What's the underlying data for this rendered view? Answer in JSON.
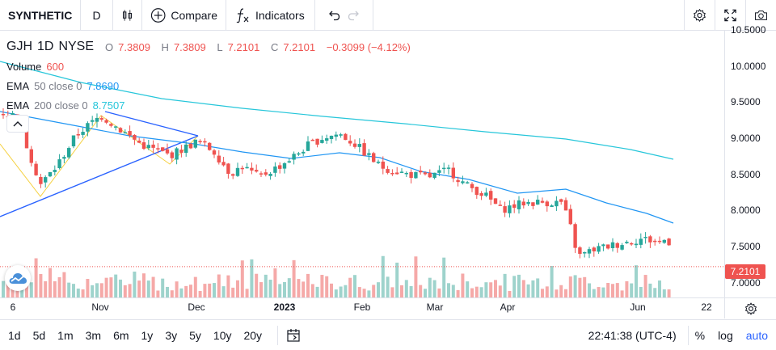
{
  "toolbar": {
    "symbol": "SYNTHETIC",
    "interval": "D",
    "compare_label": "Compare",
    "indicators_label": "Indicators"
  },
  "legend": {
    "ticker": "GJH",
    "interval": "1D",
    "exchange": "NYSE",
    "open_key": "O",
    "open": "7.3809",
    "high_key": "H",
    "high": "7.3809",
    "low_key": "L",
    "low": "7.2101",
    "close_key": "C",
    "close": "7.2101",
    "change": "−0.3099 (−4.12%)",
    "volume_name": "Volume",
    "volume_value": "600",
    "ema50_name": "EMA",
    "ema50_params": "50 close 0",
    "ema50_value": "7.8690",
    "ema200_name": "EMA",
    "ema200_params": "200 close 0",
    "ema200_value": "8.7507"
  },
  "price_axis": {
    "labels": [
      "10.5000",
      "10.0000",
      "9.5000",
      "9.0000",
      "8.5000",
      "8.0000",
      "7.5000",
      "7.0000"
    ],
    "last_price": "7.2101"
  },
  "time_axis": {
    "labels": [
      {
        "text": "6",
        "bold": false
      },
      {
        "text": "Nov",
        "bold": false
      },
      {
        "text": "Dec",
        "bold": false
      },
      {
        "text": "2023",
        "bold": true
      },
      {
        "text": "Feb",
        "bold": false
      },
      {
        "text": "Mar",
        "bold": false
      },
      {
        "text": "Apr",
        "bold": false
      },
      {
        "text": "Jun",
        "bold": false
      },
      {
        "text": "22",
        "bold": false
      }
    ]
  },
  "bottom": {
    "ranges": [
      "1d",
      "5d",
      "1m",
      "3m",
      "6m",
      "1y",
      "3y",
      "5y",
      "10y",
      "20y"
    ],
    "clock": "22:41:38 (UTC-4)",
    "percent_label": "%",
    "log_label": "log",
    "auto_label": "auto"
  },
  "colors": {
    "up": "#26a69a",
    "down": "#ef5350",
    "ema50": "#2196f3",
    "ema200": "#26c6da",
    "trendline": "#2962ff",
    "zigzag": "#f5d142",
    "accent": "#2962ff"
  },
  "icons": {
    "bars": "candle-bars-icon",
    "compare": "plus-circle-icon",
    "indicators": "fx-icon",
    "undo": "undo-icon",
    "redo": "redo-icon",
    "settings": "gear-icon",
    "fullscreen": "fullscreen-icon",
    "snapshot": "camera-icon",
    "collapse": "chevron-up-icon",
    "date_range": "calendar-icon",
    "axis_settings": "gear-icon"
  }
}
